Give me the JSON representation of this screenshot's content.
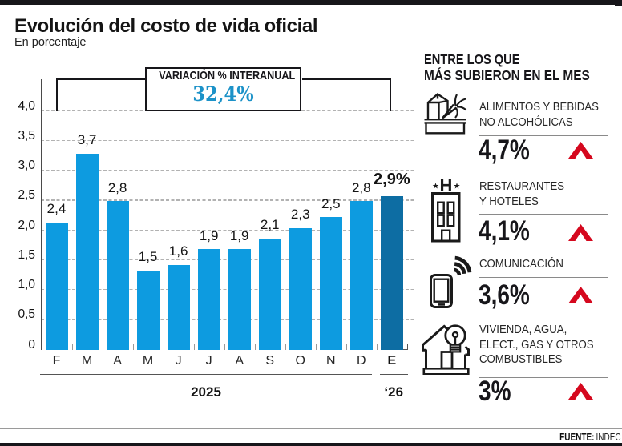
{
  "header": {
    "title": "Evolución del costo de vida oficial",
    "subtitle": "En porcentaje"
  },
  "chart_data": {
    "type": "bar",
    "categories": [
      "F",
      "M",
      "A",
      "M",
      "J",
      "J",
      "A",
      "S",
      "O",
      "N",
      "D",
      "E"
    ],
    "values": [
      2.4,
      3.7,
      2.8,
      1.5,
      1.6,
      1.9,
      1.9,
      2.1,
      2.3,
      2.5,
      2.8,
      2.9
    ],
    "value_labels": [
      "2,4",
      "3,7",
      "2,8",
      "1,5",
      "1,6",
      "1,9",
      "1,9",
      "2,1",
      "2,3",
      "2,5",
      "2,8",
      "2,9%"
    ],
    "highlight_index": 11,
    "y_ticks": [
      "0",
      "0,5",
      "1,0",
      "1,5",
      "2,0",
      "2,5",
      "3,0",
      "3,5",
      "4,0"
    ],
    "ylim": [
      0,
      4.0
    ],
    "grid": true,
    "x_period_labels": [
      "2025",
      "‘26"
    ],
    "annotation": {
      "label": "VARIACIÓN % INTERANUAL",
      "value": "32,4%"
    },
    "colors": {
      "bar": "#0d9be0",
      "bar_highlight": "#0d6da3",
      "annotation_value": "#1c92c8"
    }
  },
  "sidebar": {
    "heading_line1": "ENTRE LOS QUE",
    "heading_line2": "MÁS SUBIERON EN EL MES",
    "trend_color": "#d5081e",
    "trend_icon": "up-arrow",
    "items": [
      {
        "icon": "food-basket-icon",
        "label_lines": [
          "ALIMENTOS Y BEBIDAS",
          "NO ALCOHÓLICAS"
        ],
        "value": "4,7%"
      },
      {
        "icon": "hotel-icon",
        "label_lines": [
          "RESTAURANTES",
          "Y HOTELES"
        ],
        "value": "4,1%"
      },
      {
        "icon": "phone-icon",
        "label_lines": [
          "COMUNICACIÓN"
        ],
        "value": "3,6%"
      },
      {
        "icon": "house-icon",
        "label_lines": [
          "VIVIENDA, AGUA,",
          "ELECT., GAS Y OTROS",
          "COMBUSTIBLES"
        ],
        "value": "3%"
      }
    ]
  },
  "footer": {
    "source_label": "FUENTE:",
    "source_value": "INDEC"
  }
}
